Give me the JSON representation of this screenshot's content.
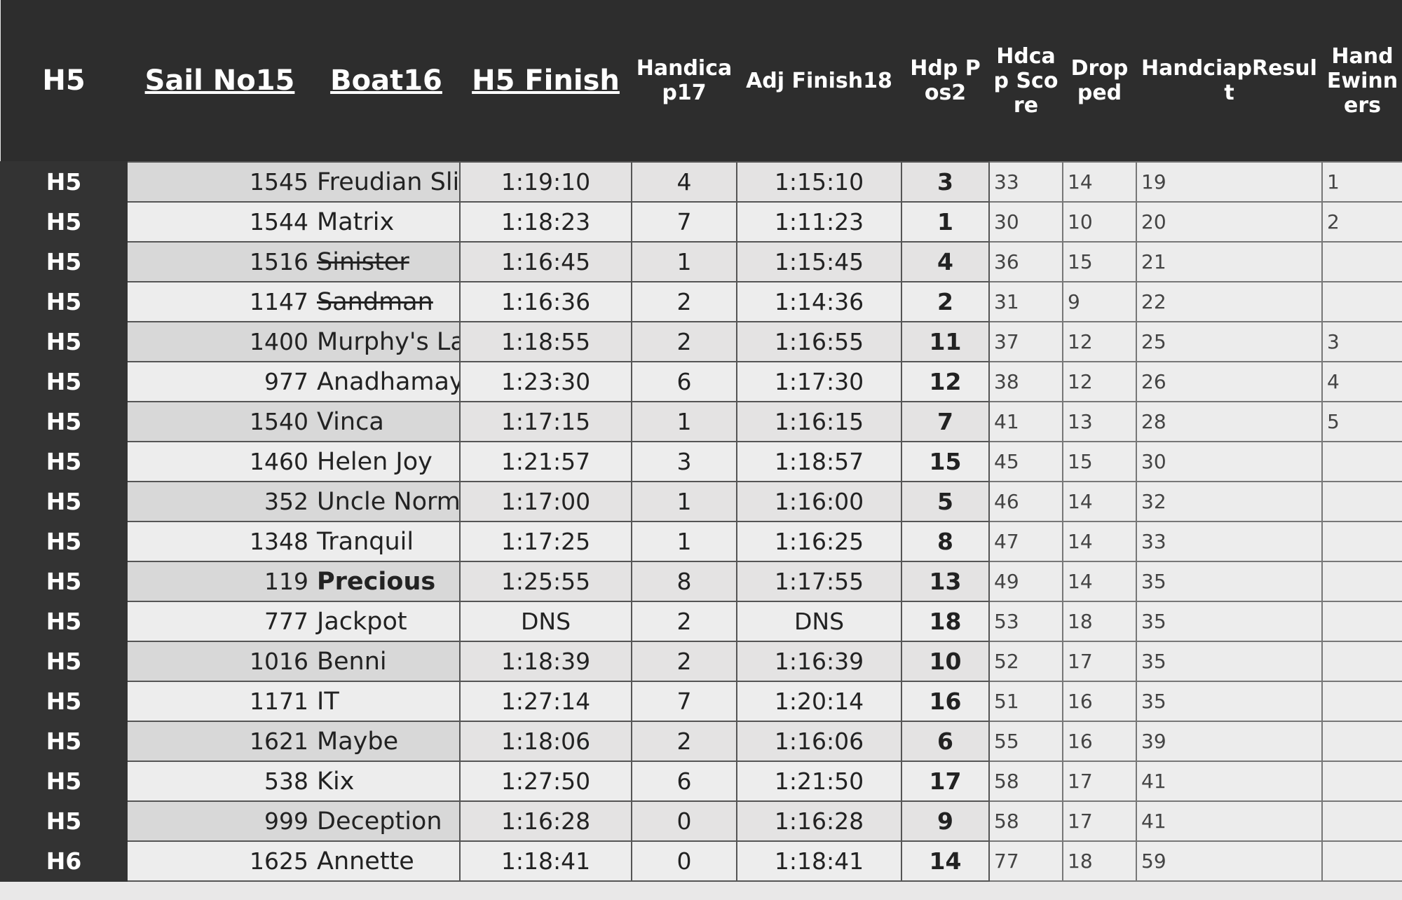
{
  "table": {
    "header": [
      "H5",
      "Sail No15",
      "Boat16",
      "H5 Finish",
      "Handicap17",
      "Adj Finish18",
      "Hdp Pos2",
      "Hdcap Score",
      "Dropped",
      "HandciapResult",
      "Hand Ewinners"
    ],
    "rows": [
      [
        "H5",
        1545,
        "Freudian Sli",
        "1:19:10",
        4,
        "1:15:10",
        3,
        33,
        14,
        19,
        1
      ],
      [
        "H5",
        1544,
        "Matrix",
        "1:18:23",
        7,
        "1:11:23",
        1,
        30,
        10,
        20,
        2
      ],
      [
        "H5",
        1516,
        "Sinister",
        "1:16:45",
        1,
        "1:15:45",
        4,
        36,
        15,
        21,
        null
      ],
      [
        "H5",
        1147,
        "Sandman",
        "1:16:36",
        2,
        "1:14:36",
        2,
        31,
        9,
        22,
        null
      ],
      [
        "H5",
        1400,
        "Murphy's La",
        "1:18:55",
        2,
        "1:16:55",
        11,
        37,
        12,
        25,
        3
      ],
      [
        "H5",
        977,
        "Anadhamay",
        "1:23:30",
        6,
        "1:17:30",
        12,
        38,
        12,
        26,
        4
      ],
      [
        "H5",
        1540,
        "Vinca",
        "1:17:15",
        1,
        "1:16:15",
        7,
        41,
        13,
        28,
        5
      ],
      [
        "H5",
        1460,
        "Helen Joy",
        "1:21:57",
        3,
        "1:18:57",
        15,
        45,
        15,
        30,
        null
      ],
      [
        "H5",
        352,
        "Uncle Norm",
        "1:17:00",
        1,
        "1:16:00",
        5,
        46,
        14,
        32,
        null
      ],
      [
        "H5",
        1348,
        "Tranquil",
        "1:17:25",
        1,
        "1:16:25",
        8,
        47,
        14,
        33,
        null
      ],
      [
        "H5",
        119,
        "Precious",
        "1:25:55",
        8,
        "1:17:55",
        13,
        49,
        14,
        35,
        null
      ],
      [
        "H5",
        777,
        "Jackpot",
        "DNS",
        2,
        "DNS",
        18,
        53,
        18,
        35,
        null
      ],
      [
        "H5",
        1016,
        "Benni",
        "1:18:39",
        2,
        "1:16:39",
        10,
        52,
        17,
        35,
        null
      ],
      [
        "H5",
        1171,
        "IT",
        "1:27:14",
        7,
        "1:20:14",
        16,
        51,
        16,
        35,
        null
      ],
      [
        "H5",
        1621,
        "Maybe",
        "1:18:06",
        2,
        "1:16:06",
        6,
        55,
        16,
        39,
        null
      ],
      [
        "H5",
        538,
        "Kix",
        "1:27:50",
        6,
        "1:21:50",
        17,
        58,
        17,
        41,
        null
      ],
      [
        "H5",
        999,
        "Deception",
        "1:16:28",
        0,
        "1:16:28",
        9,
        58,
        17,
        41,
        null
      ],
      [
        "H6",
        1625,
        "Annette",
        "1:18:41",
        0,
        "1:18:41",
        14,
        77,
        18,
        59,
        null
      ]
    ]
  }
}
